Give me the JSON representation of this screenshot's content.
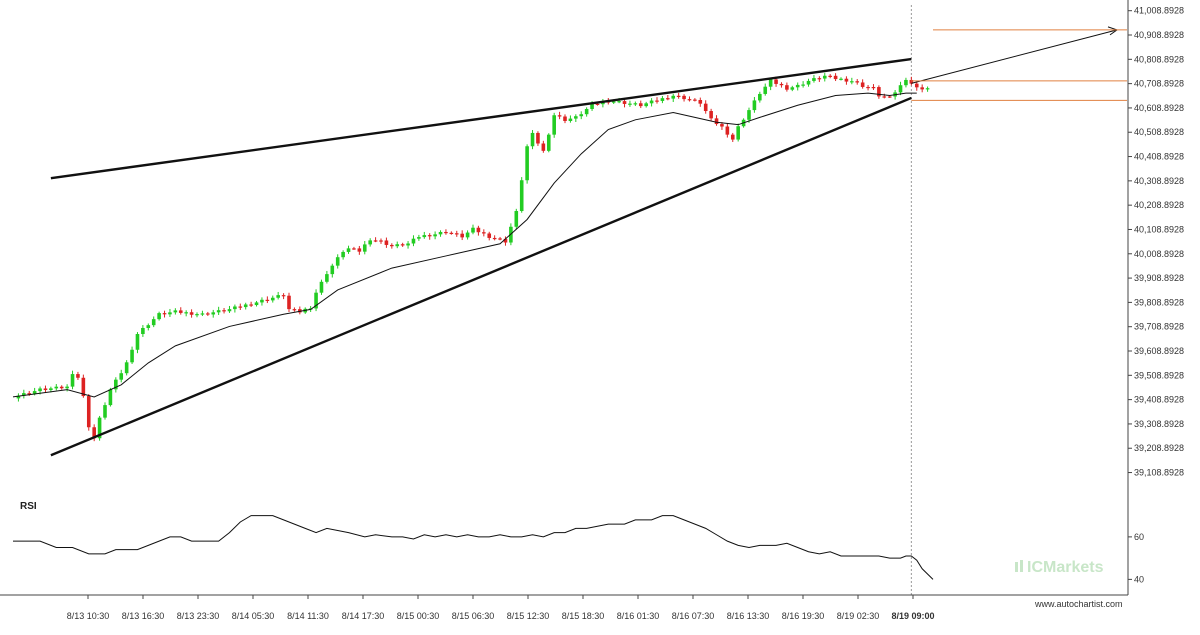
{
  "chart_data": [
    {
      "type": "candlestick",
      "title": "",
      "y_tick_labels": [
        "41,008.8928",
        "40,908.8928",
        "40,808.8928",
        "40,708.8928",
        "40,608.8928",
        "40,508.8928",
        "40,408.8928",
        "40,308.8928",
        "40,208.8928",
        "40,108.8928",
        "40,008.8928",
        "39,908.8928",
        "39,808.8928",
        "39,708.8928",
        "39,608.8928",
        "39,508.8928",
        "39,408.8928",
        "39,308.8928",
        "39,208.8928",
        "39,108.8928"
      ],
      "y_ticks": [
        41008.8928,
        40908.8928,
        40808.8928,
        40708.8928,
        40608.8928,
        40508.8928,
        40408.8928,
        40308.8928,
        40208.8928,
        40108.8928,
        40008.8928,
        39908.8928,
        39808.8928,
        39708.8928,
        39608.8928,
        39508.8928,
        39408.8928,
        39308.8928,
        39208.8928,
        39108.8928
      ],
      "ylim": [
        39070,
        41020
      ],
      "x_tick_labels": [
        "8/13 10:30",
        "8/13 16:30",
        "8/13 23:30",
        "8/14 05:30",
        "8/14 11:30",
        "8/14 17:30",
        "8/15 00:30",
        "8/15 06:30",
        "8/15 12:30",
        "8/15 18:30",
        "8/16 01:30",
        "8/16 07:30",
        "8/16 13:30",
        "8/16 19:30",
        "8/19 02:30",
        "8/19 09:00"
      ],
      "price_path": [
        [
          0,
          39420
        ],
        [
          5,
          39450
        ],
        [
          10,
          39460
        ],
        [
          11,
          39520
        ],
        [
          12,
          39500
        ],
        [
          13,
          39420
        ],
        [
          14,
          39300
        ],
        [
          15,
          39250
        ],
        [
          16,
          39330
        ],
        [
          18,
          39450
        ],
        [
          20,
          39520
        ],
        [
          21,
          39560
        ],
        [
          23,
          39680
        ],
        [
          25,
          39720
        ],
        [
          27,
          39760
        ],
        [
          30,
          39770
        ],
        [
          35,
          39760
        ],
        [
          40,
          39780
        ],
        [
          45,
          39810
        ],
        [
          50,
          39840
        ],
        [
          51,
          39780
        ],
        [
          53,
          39770
        ],
        [
          55,
          39790
        ],
        [
          56,
          39850
        ],
        [
          58,
          39930
        ],
        [
          59,
          39960
        ],
        [
          61,
          40020
        ],
        [
          62,
          40030
        ],
        [
          64,
          40020
        ],
        [
          66,
          40070
        ],
        [
          68,
          40060
        ],
        [
          70,
          40040
        ],
        [
          73,
          40050
        ],
        [
          75,
          40080
        ],
        [
          78,
          40090
        ],
        [
          80,
          40100
        ],
        [
          83,
          40080
        ],
        [
          85,
          40110
        ],
        [
          88,
          40080
        ],
        [
          91,
          40060
        ],
        [
          93,
          40180
        ],
        [
          95,
          40450
        ],
        [
          96,
          40500
        ],
        [
          98,
          40430
        ],
        [
          100,
          40580
        ],
        [
          102,
          40560
        ],
        [
          104,
          40570
        ],
        [
          107,
          40620
        ],
        [
          110,
          40640
        ],
        [
          113,
          40630
        ],
        [
          116,
          40620
        ],
        [
          119,
          40640
        ],
        [
          122,
          40660
        ],
        [
          124,
          40650
        ],
        [
          127,
          40630
        ],
        [
          129,
          40560
        ],
        [
          131,
          40530
        ],
        [
          133,
          40480
        ],
        [
          134,
          40530
        ],
        [
          136,
          40600
        ],
        [
          138,
          40670
        ],
        [
          140,
          40720
        ],
        [
          143,
          40690
        ],
        [
          145,
          40700
        ],
        [
          147,
          40720
        ],
        [
          150,
          40740
        ],
        [
          152,
          40730
        ],
        [
          155,
          40720
        ],
        [
          157,
          40700
        ],
        [
          159,
          40690
        ],
        [
          160,
          40660
        ],
        [
          162,
          40650
        ],
        [
          164,
          40700
        ],
        [
          165,
          40730
        ],
        [
          166,
          40710
        ],
        [
          167,
          40690
        ]
      ],
      "series": [
        {
          "name": "",
          "type": "moving_average",
          "values": [
            [
              0,
              39420
            ],
            [
              10,
              39450
            ],
            [
              15,
              39420
            ],
            [
              20,
              39470
            ],
            [
              25,
              39560
            ],
            [
              30,
              39630
            ],
            [
              40,
              39710
            ],
            [
              50,
              39760
            ],
            [
              55,
              39780
            ],
            [
              60,
              39860
            ],
            [
              70,
              39950
            ],
            [
              80,
              40000
            ],
            [
              90,
              40050
            ],
            [
              95,
              40150
            ],
            [
              100,
              40300
            ],
            [
              105,
              40420
            ],
            [
              110,
              40520
            ],
            [
              115,
              40560
            ],
            [
              122,
              40590
            ],
            [
              126,
              40570
            ],
            [
              130,
              40550
            ],
            [
              134,
              40540
            ],
            [
              138,
              40570
            ],
            [
              145,
              40620
            ],
            [
              152,
              40660
            ],
            [
              158,
              40670
            ],
            [
              162,
              40660
            ],
            [
              165,
              40670
            ],
            [
              167,
              40670
            ]
          ]
        }
      ],
      "trendlines": [
        {
          "name": "upper",
          "points": [
            [
              7,
              40320
            ],
            [
              166,
              40810
            ]
          ]
        },
        {
          "name": "lower",
          "points": [
            [
              7,
              39180
            ],
            [
              166,
              40650
            ]
          ]
        },
        {
          "name": "projection",
          "points": [
            [
              166,
              40710
            ],
            [
              204,
              40930
            ]
          ]
        }
      ],
      "levels": [
        {
          "name": "target",
          "value": 40930,
          "color": "#e08040"
        },
        {
          "name": "resistance",
          "value": 40720,
          "color": "#e08040"
        },
        {
          "name": "support",
          "value": 40640,
          "color": "#e08040"
        }
      ],
      "grid": false,
      "colors": {
        "up": "#22cc22",
        "down": "#dd2222",
        "trend": "#111111",
        "level": "#e08040",
        "cursor": "#999999"
      }
    },
    {
      "type": "line",
      "title": "RSI",
      "y_tick_labels": [
        "60",
        "40"
      ],
      "y_ticks": [
        60,
        40
      ],
      "ylim": [
        35,
        75
      ],
      "series": [
        {
          "name": "",
          "values": [
            [
              0,
              58
            ],
            [
              5,
              58
            ],
            [
              8,
              55
            ],
            [
              11,
              55
            ],
            [
              14,
              52
            ],
            [
              17,
              52
            ],
            [
              19,
              54
            ],
            [
              23,
              54
            ],
            [
              25,
              56
            ],
            [
              27,
              58
            ],
            [
              29,
              60
            ],
            [
              31,
              60
            ],
            [
              33,
              58
            ],
            [
              36,
              58
            ],
            [
              38,
              58
            ],
            [
              40,
              62
            ],
            [
              42,
              67
            ],
            [
              44,
              70
            ],
            [
              48,
              70
            ],
            [
              50,
              68
            ],
            [
              52,
              66
            ],
            [
              54,
              64
            ],
            [
              56,
              62
            ],
            [
              58,
              64
            ],
            [
              60,
              63
            ],
            [
              62,
              62
            ],
            [
              65,
              60
            ],
            [
              67,
              61
            ],
            [
              70,
              60
            ],
            [
              72,
              60
            ],
            [
              74,
              59
            ],
            [
              76,
              61
            ],
            [
              78,
              60
            ],
            [
              80,
              61
            ],
            [
              82,
              60
            ],
            [
              84,
              61
            ],
            [
              86,
              60
            ],
            [
              88,
              60
            ],
            [
              90,
              61
            ],
            [
              92,
              60
            ],
            [
              94,
              60
            ],
            [
              96,
              61
            ],
            [
              98,
              60
            ],
            [
              100,
              62
            ],
            [
              102,
              62
            ],
            [
              104,
              64
            ],
            [
              106,
              64
            ],
            [
              108,
              65
            ],
            [
              110,
              66
            ],
            [
              113,
              66
            ],
            [
              115,
              68
            ],
            [
              118,
              68
            ],
            [
              120,
              70
            ],
            [
              122,
              70
            ],
            [
              124,
              68
            ],
            [
              126,
              66
            ],
            [
              128,
              64
            ],
            [
              130,
              61
            ],
            [
              132,
              58
            ],
            [
              134,
              56
            ],
            [
              136,
              55
            ],
            [
              138,
              56
            ],
            [
              141,
              56
            ],
            [
              143,
              57
            ],
            [
              145,
              55
            ],
            [
              147,
              53
            ],
            [
              149,
              52
            ],
            [
              151,
              53
            ],
            [
              153,
              51
            ],
            [
              160,
              51
            ],
            [
              162,
              50
            ],
            [
              164,
              50
            ],
            [
              165,
              51
            ],
            [
              166,
              51
            ],
            [
              167,
              49
            ],
            [
              168,
              45
            ],
            [
              170,
              40
            ]
          ]
        }
      ],
      "grid": false
    }
  ],
  "watermark": {
    "brand": "ICMarkets",
    "url": "www.autochartist.com"
  }
}
